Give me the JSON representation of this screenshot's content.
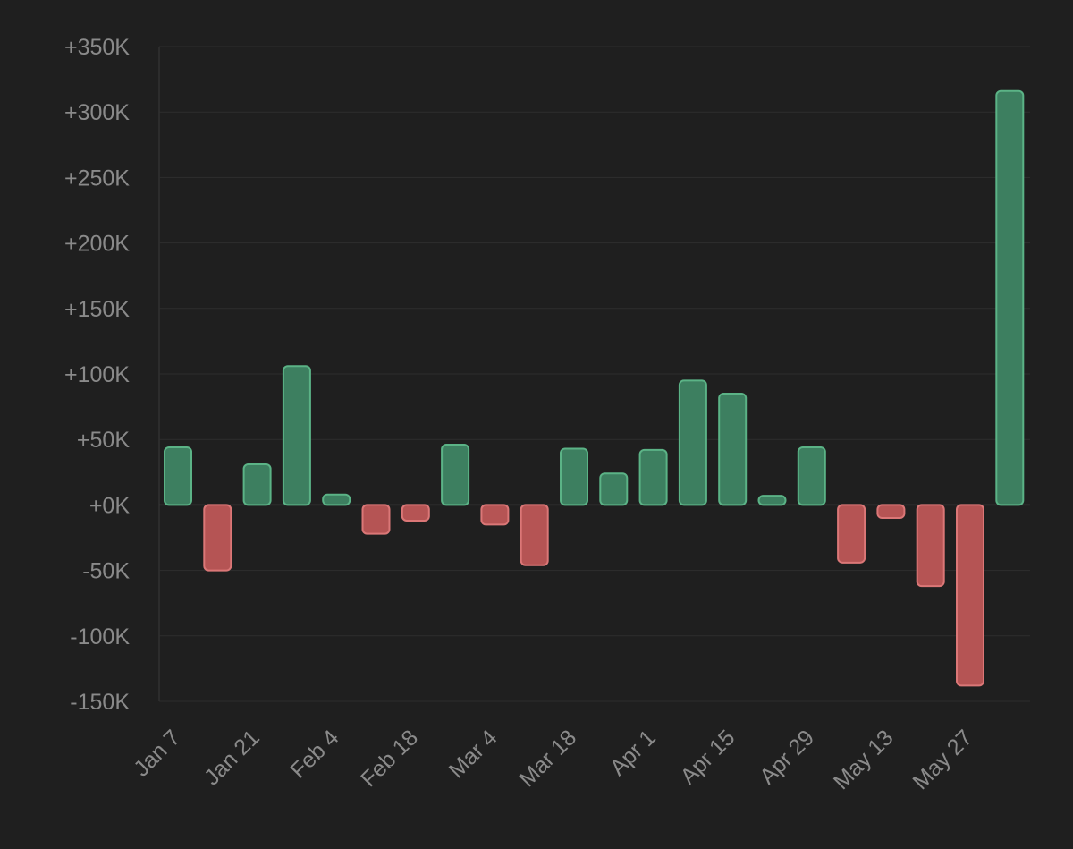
{
  "chart_data": {
    "type": "bar",
    "title": "",
    "xlabel": "",
    "ylabel": "",
    "ylim": [
      -150000,
      350000
    ],
    "y_ticks": [
      {
        "value": 350000,
        "label": "+350K"
      },
      {
        "value": 300000,
        "label": "+300K"
      },
      {
        "value": 250000,
        "label": "+250K"
      },
      {
        "value": 200000,
        "label": "+200K"
      },
      {
        "value": 150000,
        "label": "+150K"
      },
      {
        "value": 100000,
        "label": "+100K"
      },
      {
        "value": 50000,
        "label": "+50K"
      },
      {
        "value": 0,
        "label": "+0K"
      },
      {
        "value": -50000,
        "label": "-50K"
      },
      {
        "value": -100000,
        "label": "-100K"
      },
      {
        "value": -150000,
        "label": "-150K"
      }
    ],
    "grid": true,
    "legend": "none",
    "categories": [
      "Jan 7",
      "Jan 14",
      "Jan 21",
      "Jan 28",
      "Feb 4",
      "Feb 11",
      "Feb 18",
      "Feb 25",
      "Mar 4",
      "Mar 11",
      "Mar 18",
      "Mar 25",
      "Apr 1",
      "Apr 8",
      "Apr 15",
      "Apr 22",
      "Apr 29",
      "May 6",
      "May 13",
      "May 20",
      "May 27",
      "Jun 3"
    ],
    "x_tick_labels": [
      "Jan 7",
      "Jan 21",
      "Feb 4",
      "Feb 18",
      "Mar 4",
      "Mar 18",
      "Apr 1",
      "Apr 15",
      "Apr 29",
      "May 13",
      "May 27"
    ],
    "values": [
      44000,
      -50000,
      31000,
      106000,
      8000,
      -22000,
      -12000,
      46000,
      -15000,
      -46000,
      43000,
      24000,
      42000,
      95000,
      85000,
      7000,
      44000,
      -44000,
      -10000,
      -62000,
      -138000,
      316000
    ],
    "colors": {
      "background": "#1f1f1f",
      "positive_fill": "#3d7f60",
      "positive_stroke": "#5bb386",
      "negative_fill": "#b55454",
      "negative_stroke": "#db7777",
      "grid": "#2e2e2e",
      "axis": "#3a3a3a",
      "tick_text": "#8a8a8a"
    }
  }
}
